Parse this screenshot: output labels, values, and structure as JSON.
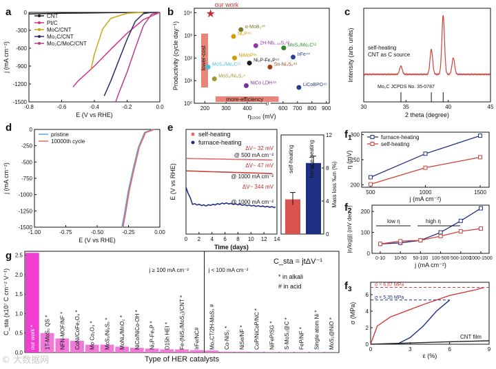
{
  "colors": {
    "cnt": "#1a1a1a",
    "ptc": "#d6308a",
    "moc": "#c9a80a",
    "mo2c": "#2a2a6a",
    "hetero": "#b0408a",
    "red": "#d0403a",
    "navy": "#1f2f82",
    "pink": "#f03fd0",
    "gray": "#888888",
    "blue": "#6a9fd8"
  },
  "watermark": "© 大数据网",
  "panels": {
    "a": {
      "letter": "a",
      "xlabel": "E (V vs RHE)",
      "ylabel": "j (mA cm⁻²)",
      "xticks": [
        "-0.8",
        "-0.6",
        "-0.4",
        "-0.2",
        "0.0"
      ],
      "yticks": [
        "0",
        "-300",
        "-600",
        "-900",
        "-1200",
        "-1500"
      ],
      "legend": [
        "CNT",
        "Pt/C",
        "MoC/CNT",
        "Mo₂C/CNT",
        "Mo₂C/MoC/CNT"
      ]
    },
    "b": {
      "letter": "b",
      "xlabel": "η₁₀₀₀ (mV)",
      "ylabel": "Productivity (cycle day⁻¹)",
      "xticks": [
        "200",
        "300",
        "400",
        "600",
        "700",
        "800",
        "900"
      ],
      "yticks": [
        "10⁰",
        "10¹",
        "10²",
        "10³",
        "10⁴"
      ],
      "our_work": "our work",
      "lower_cost": "lower-cost",
      "more_efficiency": "more-efficiency",
      "points": [
        {
          "label": "α-MoB₂⁴³",
          "color": "#7a7a20"
        },
        {
          "label": "Ni₂P⁴⁶",
          "color": "#d89a00"
        },
        {
          "label": "2H-Nb₁.₃₅S₂⁴²",
          "color": "#9a2fb0"
        },
        {
          "label": "MoS₂/Mo₂C¹²",
          "color": "#2a8a2a"
        },
        {
          "label": "NiMoP³⁶",
          "color": "#c8a000"
        },
        {
          "label": "Ni₂P-Fe₂P⁴⁷",
          "color": "#1a1a1a"
        },
        {
          "label": "IrFe⁴⁴",
          "color": "#3040a0"
        },
        {
          "label": "Sn-Ni₃S₂⁴⁵",
          "color": "#a04010"
        },
        {
          "label": "MoS₂/Mo₂C¹¹",
          "color": "#40c0d0"
        },
        {
          "label": "MoS₂/Ni₃S₂⁴",
          "color": "#9a9a30"
        },
        {
          "label": "NiCo LDH⁴⁹",
          "color": "#7030a0"
        },
        {
          "label": "LiCoBPO⁴⁵",
          "color": "#2a3a8a"
        }
      ]
    },
    "c": {
      "letter": "c",
      "xlabel": "2 theta (degree)",
      "ylabel": "Intensity (arb. units)",
      "xticks": [
        "30",
        "35",
        "40",
        "45"
      ],
      "caption1": "self-heating",
      "caption2": "CNT as C source",
      "ref": "Mo₂C JCPDS No. 35-0787"
    },
    "d": {
      "letter": "d",
      "xlabel": "E (V vs RHE)",
      "ylabel": "j (mA cm⁻²)",
      "xticks": [
        "-1.00",
        "-0.75",
        "-0.50",
        "-0.25",
        "0.00"
      ],
      "yticks": [
        "0",
        "-250",
        "-500",
        "-750",
        "-1000",
        "-1250",
        "-1500"
      ],
      "legend": [
        "pristine",
        "10000th cycle"
      ]
    },
    "e": {
      "letter": "e",
      "xlabel": "Time (days)",
      "ylabel": "E (V vs RHE)",
      "xticks": [
        "0",
        "2",
        "4",
        "6",
        "8",
        "10",
        "12",
        "14"
      ],
      "legend": [
        "self-heating",
        "furnace-heating"
      ],
      "ann": [
        "ΔV~ 32 mV",
        "@ 500 mA cm⁻²",
        "ΔV~ 47 mV",
        "@ 1000 mA cm⁻²",
        "ΔV~ 344 mV",
        "@ 1000 mA cm⁻²"
      ],
      "bar_ylabel": "Mass loss ‰m (%)",
      "bar_yticks": [
        "0",
        "4",
        "8",
        "12"
      ],
      "bars": [
        {
          "label": "self-heating",
          "value": 4.2
        },
        {
          "label": "furnace-heating",
          "value": 8.6
        }
      ]
    },
    "f1": {
      "letter": "f",
      "sub": "1",
      "xlabel": "j (mA cm⁻²)",
      "ylabel": "η (mV)",
      "xticks": [
        "500",
        "1000",
        "1500"
      ],
      "yticks": [
        "200",
        "250",
        "300"
      ],
      "legend": [
        "furnace-heating",
        "self-heating"
      ]
    },
    "f2": {
      "letter": "f",
      "sub": "2",
      "xlabel": "j (mA cm⁻²)",
      "ylabel": "|η/log|j|| (mV dec⁻¹)",
      "xticks": [
        "0-10",
        "10-50",
        "50-100",
        "100-500",
        "500-1000",
        "1000-1500"
      ],
      "yticks": [
        "0",
        "100",
        "200"
      ],
      "low": "low η",
      "high": "high η"
    },
    "f3": {
      "letter": "f",
      "sub": "3",
      "xlabel": "ε (%)",
      "ylabel": "σ (MPa)",
      "xticks": [
        "0",
        "3",
        "6",
        "9"
      ],
      "yticks": [
        "0",
        "2",
        "4",
        "6"
      ],
      "s1": "σ = 6.87 MPa",
      "s2": "σ = 5.35 MPa",
      "film": "CNT film"
    },
    "g": {
      "letter": "g",
      "xlabel": "Type of HER catalysts",
      "ylabel": "C_sta (x10⁷ C cm⁻² V⁻¹)",
      "yticks": [
        "0.0",
        "0.5",
        "1.0",
        "1.5",
        "2.0",
        "2.5"
      ],
      "formula": "C_sta = jtΔV⁻¹",
      "alkali": "*  in alkali",
      "acid": "#  in acid",
      "high_j": "j ≥ 100 mA cm⁻²",
      "low_j": "j < 100 mA cm⁻²"
    }
  },
  "chart_data": [
    {
      "panel": "a",
      "type": "line",
      "xlim": [
        -0.8,
        0.0
      ],
      "ylim": [
        -1500,
        0
      ],
      "series": [
        {
          "name": "CNT",
          "x": [
            0,
            -0.3,
            -0.6,
            -0.8
          ],
          "y": [
            0,
            -5,
            -15,
            -25
          ]
        },
        {
          "name": "Pt/C",
          "x": [
            0,
            -0.1,
            -0.2,
            -0.3,
            -0.4,
            -0.5,
            -0.53
          ],
          "y": [
            0,
            -120,
            -350,
            -620,
            -900,
            -1150,
            -1250
          ]
        },
        {
          "name": "MoC/CNT",
          "x": [
            -0.1,
            -0.2,
            -0.3,
            -0.35,
            -0.4,
            -0.42
          ],
          "y": [
            0,
            -15,
            -100,
            -280,
            -700,
            -950
          ]
        },
        {
          "name": "Mo₂C/CNT",
          "x": [
            -0.05,
            -0.1,
            -0.15,
            -0.2,
            -0.25,
            -0.3,
            -0.34
          ],
          "y": [
            0,
            -20,
            -150,
            -450,
            -800,
            -1150,
            -1400
          ]
        },
        {
          "name": "Mo₂C/MoC/CNT",
          "x": [
            0,
            -0.05,
            -0.1,
            -0.15,
            -0.2,
            -0.25,
            -0.27
          ],
          "y": [
            0,
            -30,
            -220,
            -600,
            -1000,
            -1350,
            -1500
          ]
        }
      ]
    },
    {
      "panel": "b",
      "type": "scatter",
      "xlabel": "η₁₀₀₀ (mV)",
      "ylabel": "Productivity (cycle day⁻¹)",
      "series": [
        {
          "name": "our work",
          "x": [
            227
          ],
          "y": [
            9000
          ]
        },
        {
          "name": "α-MoB₂⁴³",
          "x": [
            370
          ],
          "y": [
            1800
          ]
        },
        {
          "name": "Ni₂P⁴⁶",
          "x": [
            335
          ],
          "y": [
            900
          ]
        },
        {
          "name": "2H-Nb₁.₃₅S₂⁴²",
          "x": [
            440
          ],
          "y": [
            350
          ]
        },
        {
          "name": "MoS₂/Mo₂C¹²",
          "x": [
            605
          ],
          "y": [
            280
          ]
        },
        {
          "name": "NiMoP³⁶",
          "x": [
            340
          ],
          "y": [
            100
          ]
        },
        {
          "name": "Ni₂P-Fe₂P⁴⁷",
          "x": [
            410
          ],
          "y": [
            60
          ]
        },
        {
          "name": "IrFe⁴⁴",
          "x": [
            670
          ],
          "y": [
            110
          ]
        },
        {
          "name": "Sn-Ni₃S₂⁴⁵",
          "x": [
            510
          ],
          "y": [
            40
          ]
        },
        {
          "name": "MoS₂/Mo₂C¹¹",
          "x": [
            215
          ],
          "y": [
            40
          ]
        },
        {
          "name": "MoS₂/Ni₃S₂⁴",
          "x": [
            245
          ],
          "y": [
            12
          ]
        },
        {
          "name": "NiCo LDH⁴⁹",
          "x": [
            395
          ],
          "y": [
            6
          ]
        },
        {
          "name": "LiCoBPO⁴⁵",
          "x": [
            710
          ],
          "y": [
            5
          ]
        }
      ]
    },
    {
      "panel": "c",
      "type": "line",
      "xlim": [
        30,
        45
      ],
      "peaks": [
        {
          "x": 34.4,
          "h": 0.14
        },
        {
          "x": 38.0,
          "h": 0.42
        },
        {
          "x": 39.4,
          "h": 1.0
        },
        {
          "x": 40.6,
          "h": 0.28
        }
      ],
      "ref_lines": [
        34.4,
        38.0,
        39.4
      ]
    },
    {
      "panel": "d",
      "type": "line",
      "xlim": [
        -1.0,
        0.0
      ],
      "ylim": [
        -1500,
        0
      ],
      "series": [
        {
          "name": "pristine",
          "x": [
            -0.05,
            -0.12,
            -0.17,
            -0.21,
            -0.25,
            -0.28,
            -0.3
          ],
          "y": [
            0,
            -50,
            -280,
            -600,
            -950,
            -1300,
            -1500
          ]
        },
        {
          "name": "10000th cycle",
          "x": [
            -0.05,
            -0.12,
            -0.17,
            -0.21,
            -0.25,
            -0.28,
            -0.3
          ],
          "y": [
            0,
            -45,
            -270,
            -590,
            -940,
            -1290,
            -1500
          ]
        }
      ]
    },
    {
      "panel": "e",
      "type": "line",
      "xlim": [
        0,
        14
      ],
      "ylim": [
        -1.8,
        0
      ],
      "series": [
        {
          "name": "self-heating @500",
          "x": [
            0,
            14
          ],
          "y": [
            -0.5,
            -0.53
          ]
        },
        {
          "name": "self-heating @1000",
          "x": [
            0,
            14
          ],
          "y": [
            -0.72,
            -0.77
          ]
        },
        {
          "name": "furnace-heating @1000",
          "x": [
            0,
            1,
            3,
            6,
            10,
            14
          ],
          "y": [
            -1.0,
            -1.28,
            -1.31,
            -1.27,
            -1.31,
            -1.34
          ]
        }
      ]
    },
    {
      "panel": "e-bar",
      "type": "bar",
      "categories": [
        "self-heating",
        "furnace-heating"
      ],
      "values": [
        4.2,
        8.6
      ],
      "ylim": [
        0,
        12
      ]
    },
    {
      "panel": "f1",
      "type": "line",
      "categories": [
        500,
        1000,
        1500
      ],
      "ylim": [
        200,
        300
      ],
      "series": [
        {
          "name": "furnace-heating",
          "values": [
            215,
            262,
            298
          ]
        },
        {
          "name": "self-heating",
          "values": [
            201,
            234,
            255
          ]
        }
      ]
    },
    {
      "panel": "f2",
      "type": "line",
      "categories": [
        "0-10",
        "10-50",
        "50-100",
        "100-500",
        "500-1000",
        "1000-1500"
      ],
      "ylim": [
        0,
        230
      ],
      "series": [
        {
          "name": "furnace",
          "values": [
            45,
            50,
            62,
            100,
            155,
            215
          ]
        },
        {
          "name": "self",
          "values": [
            45,
            58,
            62,
            82,
            105,
            118
          ]
        }
      ]
    },
    {
      "panel": "f3",
      "type": "line",
      "xlim": [
        0,
        9
      ],
      "ylim": [
        0,
        7.5
      ],
      "series": [
        {
          "name": "red",
          "x": [
            0,
            0.5,
            1.5,
            2.5,
            4,
            6,
            8,
            8.6
          ],
          "y": [
            0,
            2.2,
            3.3,
            3.9,
            4.8,
            5.9,
            6.6,
            6.87
          ]
        },
        {
          "name": "navy",
          "x": [
            2,
            3,
            4,
            5,
            6
          ],
          "y": [
            0,
            0.8,
            2.2,
            4.0,
            5.35
          ]
        },
        {
          "name": "CNT film",
          "x": [
            0,
            3,
            6,
            9
          ],
          "y": [
            0,
            0.15,
            0.3,
            0.42
          ]
        }
      ]
    },
    {
      "panel": "g",
      "type": "bar",
      "ylim": [
        0,
        2.6
      ],
      "categories": [
        "our work *",
        "1T-MoS₂ QS *",
        "NFN-MOF/NF *",
        "CoNi/CoFe₂O₄ *",
        "Mo Co₂O₄ *",
        "MoS₂/Ni₃S₂ *",
        "MoNi₄/MnO₂ *",
        "NiCo/NiCo-OH *",
        "Ni₂P-Fe₂P *",
        "D15h HEI *",
        "Fe-(NiS₂/MoS₂)/CNT *",
        "IrFe/NC#",
        "Mo₂CT/2H-MoS₂ #",
        "Co-NiS₂ *",
        "NiSe/NF *",
        "CoP/NiCoP/NC *",
        "NiFeP/SG *",
        "S-MoS₂@C *",
        "FeP/NF *",
        "Single atom Ni *",
        "MoS₂@NiO *"
      ],
      "values": [
        2.56,
        0.5,
        0.36,
        0.3,
        0.2,
        0.2,
        0.15,
        0.12,
        0.1,
        0.08,
        0.08,
        0.06,
        0.05,
        0.02,
        0.02,
        0.015,
        0.012,
        0.01,
        0.01,
        0.008,
        0.006
      ]
    }
  ]
}
